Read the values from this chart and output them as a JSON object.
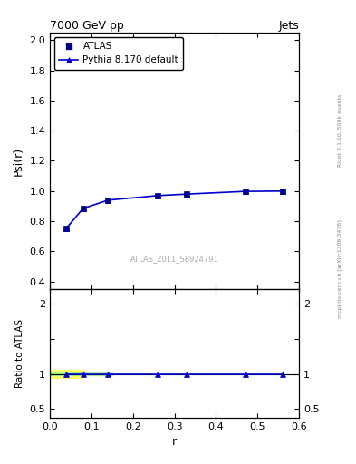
{
  "title_left": "7000 GeV pp",
  "title_right": "Jets",
  "right_label": "mcplots.cern.ch [arXiv:1306.3436]",
  "rivet_label": "Rivet 3.1.10, 500k events",
  "watermark": "ATLAS_2011_S8924791",
  "xlabel": "r",
  "ylabel_main": "Psi(r)",
  "ylabel_ratio": "Ratio to ATLAS",
  "x_data": [
    0.04,
    0.08,
    0.14,
    0.26,
    0.33,
    0.47,
    0.56
  ],
  "y_atlas": [
    0.755,
    0.885,
    0.94,
    0.97,
    0.98,
    0.998,
    1.0
  ],
  "y_pythia": [
    0.755,
    0.885,
    0.94,
    0.97,
    0.98,
    0.998,
    1.0
  ],
  "ratio_y": [
    1.0,
    1.0,
    1.0,
    1.0,
    1.0,
    1.0,
    1.0
  ],
  "ylim_main": [
    0.35,
    2.05
  ],
  "ylim_ratio": [
    0.38,
    2.2
  ],
  "xlim": [
    0.0,
    0.6
  ],
  "main_yticks": [
    0.4,
    0.6,
    0.8,
    1.0,
    1.2,
    1.4,
    1.6,
    1.8,
    2.0
  ],
  "ratio_yticks": [
    0.5,
    1.0,
    1.5,
    2.0
  ],
  "ratio_ytick_labels": [
    "0.5",
    "1",
    "",
    "2"
  ],
  "line_color": "#0000cc",
  "atlas_marker_color": "#00008B",
  "band_yellow": "#ffff66",
  "band_green": "#90EE90",
  "yellow_x": [
    0.0,
    0.08
  ],
  "yellow_lo": [
    0.94,
    0.94
  ],
  "yellow_hi": [
    1.06,
    1.06
  ],
  "green_x": [
    0.0,
    0.15
  ],
  "green_lo": [
    0.975,
    0.975
  ],
  "green_hi": [
    1.025,
    1.025
  ]
}
